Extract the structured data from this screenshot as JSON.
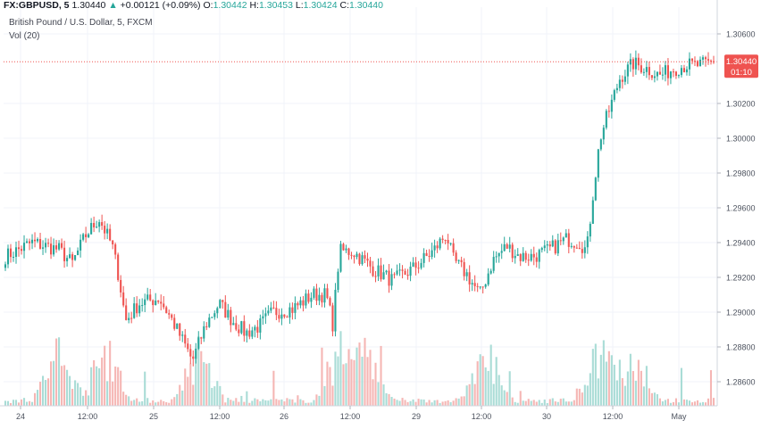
{
  "header": {
    "symbol": "FX:GBPUSD, 5",
    "last": "1.30440",
    "change_arrow": "▲",
    "change": "+0.00121 (+0.09%)",
    "o_label": "O:",
    "o_value": "1.30442",
    "h_label": "H:",
    "h_value": "1.30453",
    "l_label": "L:",
    "l_value": "1.30424",
    "c_label": "C:",
    "c_value": "1.30440"
  },
  "legend": {
    "series_title": "British Pound / U.S. Dollar, 5, FXCM",
    "volume_title": "Vol (20)"
  },
  "price_label": {
    "value": "1.30440",
    "countdown": "01:10"
  },
  "colors": {
    "up": "#26a69a",
    "down": "#ef5350",
    "up_volume": "#a9dcd6",
    "down_volume": "#f5b6b4",
    "price_label_bg": "#ef5350",
    "grid": "#f0f3fa",
    "axis_text": "#4c525e"
  },
  "chart_data": {
    "type": "candlestick",
    "ylim": [
      1.285,
      1.307
    ],
    "y_ticks": [
      "1.30600",
      "1.30200",
      "1.30000",
      "1.29800",
      "1.29600",
      "1.29400",
      "1.29200",
      "1.29000",
      "1.28800",
      "1.28600"
    ],
    "x_tick_labels": [
      "24",
      "12:00",
      "25",
      "12:00",
      "26",
      "12:00",
      "29",
      "12:00",
      "30",
      "12:00",
      "May"
    ],
    "last_price": 1.3044,
    "price_path": [
      [
        0,
        1.2932
      ],
      [
        4,
        1.294
      ],
      [
        8,
        1.2936
      ],
      [
        10,
        1.2928
      ],
      [
        12,
        1.2944
      ],
      [
        14,
        1.2954
      ],
      [
        16,
        1.2938
      ],
      [
        17,
        1.292
      ],
      [
        18,
        1.2895
      ],
      [
        20,
        1.2905
      ],
      [
        23,
        1.2908
      ],
      [
        25,
        1.2895
      ],
      [
        27,
        1.288
      ],
      [
        28,
        1.2872
      ],
      [
        30,
        1.2893
      ],
      [
        32,
        1.2905
      ],
      [
        34,
        1.2895
      ],
      [
        36,
        1.2888
      ],
      [
        38,
        1.2892
      ],
      [
        40,
        1.29
      ],
      [
        43,
        1.2902
      ],
      [
        46,
        1.291
      ],
      [
        48,
        1.291
      ],
      [
        49,
        1.2893
      ],
      [
        50,
        1.2935
      ],
      [
        52,
        1.2935
      ],
      [
        55,
        1.2925
      ],
      [
        58,
        1.2918
      ],
      [
        61,
        1.2925
      ],
      [
        64,
        1.2935
      ],
      [
        66,
        1.2945
      ],
      [
        67,
        1.293
      ],
      [
        69,
        1.2922
      ],
      [
        71,
        1.291
      ],
      [
        73,
        1.293
      ],
      [
        75,
        1.2938
      ],
      [
        77,
        1.2932
      ],
      [
        79,
        1.2932
      ],
      [
        81,
        1.2935
      ],
      [
        84,
        1.2942
      ],
      [
        86,
        1.294
      ],
      [
        87,
        1.2935
      ],
      [
        88,
        1.297
      ],
      [
        89,
        1.3
      ],
      [
        90,
        1.3012
      ],
      [
        92,
        1.3035
      ],
      [
        94,
        1.3043
      ],
      [
        96,
        1.304
      ],
      [
        98,
        1.3036
      ],
      [
        100,
        1.304
      ],
      [
        102,
        1.3042
      ],
      [
        104,
        1.3042
      ],
      [
        106,
        1.3044
      ]
    ],
    "volume_bursts": [
      8,
      15,
      29,
      50,
      54,
      72,
      89,
      94
    ]
  }
}
